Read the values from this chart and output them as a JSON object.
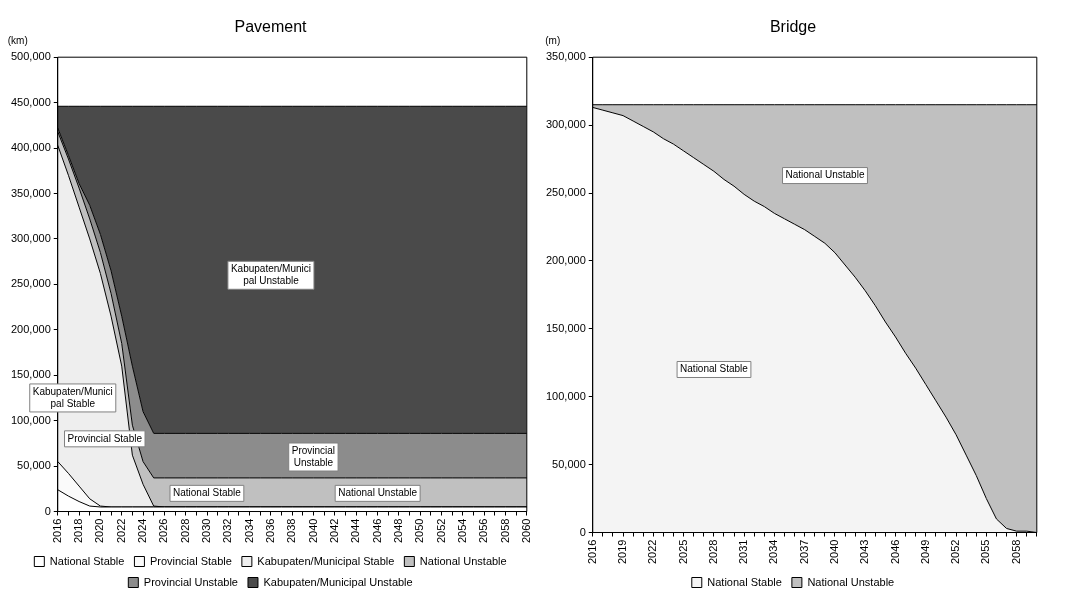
{
  "chart_data": [
    {
      "type": "area",
      "title": "Pavement",
      "ylabel": "(km)",
      "stacked": true,
      "legend": "bottom",
      "categories": [
        "2016",
        null,
        "2018",
        null,
        "2020",
        null,
        "2022",
        null,
        "2024",
        null,
        "2026",
        null,
        "2028",
        null,
        "2030",
        null,
        "2032",
        null,
        "2034",
        null,
        "2036",
        null,
        "2038",
        null,
        "2040",
        null,
        "2042",
        null,
        "2044",
        null,
        "2046",
        null,
        "2048",
        null,
        "2050",
        null,
        "2052",
        null,
        "2054",
        null,
        "2056",
        null,
        "2058",
        null,
        "2060"
      ],
      "ylim": [
        0,
        500000
      ],
      "yticks": [
        {
          "value": 0,
          "label": "0"
        },
        {
          "value": 50000,
          "label": "50,000"
        },
        {
          "value": 100000,
          "label": "100,000"
        },
        {
          "value": 150000,
          "label": "150,000"
        },
        {
          "value": 200000,
          "label": "200,000"
        },
        {
          "value": 250000,
          "label": "250,000"
        },
        {
          "value": 300000,
          "label": "300,000"
        },
        {
          "value": 350000,
          "label": "350,000"
        },
        {
          "value": 400000,
          "label": "400,000"
        },
        {
          "value": 450000,
          "label": "450,000"
        },
        {
          "value": 500000,
          "label": "500,000"
        }
      ],
      "series": [
        {
          "name": "National Stable",
          "color": "#ffffff",
          "values": [
            24000,
            17000,
            11000,
            6000,
            5000,
            5000,
            5000,
            5000,
            5000,
            5000,
            5000,
            5000,
            5000,
            5000,
            5000,
            5000,
            5000,
            5000,
            5000,
            5000,
            5000,
            5000,
            5000,
            5000,
            5000,
            5000,
            5000,
            5000,
            5000,
            5000,
            5000,
            5000,
            5000,
            5000,
            5000,
            5000,
            5000,
            5000,
            5000,
            5000,
            5000,
            5000,
            5000,
            5000,
            5000
          ]
        },
        {
          "name": "Provincial Stable",
          "color": "#fafafa",
          "values": [
            31000,
            25000,
            17000,
            8000,
            1000,
            0,
            0,
            0,
            0,
            0,
            0,
            0,
            0,
            0,
            0,
            0,
            0,
            0,
            0,
            0,
            0,
            0,
            0,
            0,
            0,
            0,
            0,
            0,
            0,
            0,
            0,
            0,
            0,
            0,
            0,
            0,
            0,
            0,
            0,
            0,
            0,
            0,
            0,
            0,
            0
          ]
        },
        {
          "name": "Kabupaten/Municipal Stable",
          "color": "#eeeeee",
          "values": [
            348000,
            328000,
            307000,
            286000,
            256000,
            210000,
            155000,
            57000,
            25000,
            1000,
            0,
            0,
            0,
            0,
            0,
            0,
            0,
            0,
            0,
            0,
            0,
            0,
            0,
            0,
            0,
            0,
            0,
            0,
            0,
            0,
            0,
            0,
            0,
            0,
            0,
            0,
            0,
            0,
            0,
            0,
            0,
            0,
            0,
            0,
            0
          ]
        },
        {
          "name": "National Unstable",
          "color": "#c0c0c0",
          "values": [
            15000,
            18000,
            21000,
            22000,
            23000,
            25000,
            25000,
            33000,
            25000,
            31000,
            32000,
            32000,
            32000,
            32000,
            32000,
            32000,
            32000,
            32000,
            32000,
            32000,
            32000,
            32000,
            32000,
            32000,
            32000,
            32000,
            32000,
            32000,
            32000,
            32000,
            32000,
            32000,
            32000,
            32000,
            32000,
            32000,
            32000,
            32000,
            32000,
            32000,
            32000,
            32000,
            32000,
            32000,
            32000
          ]
        },
        {
          "name": "Provincial Unstable",
          "color": "#8c8c8c",
          "values": [
            4000,
            4000,
            5000,
            15000,
            20000,
            25000,
            30000,
            65000,
            55000,
            49000,
            49000,
            49000,
            49000,
            49000,
            49000,
            49000,
            49000,
            49000,
            49000,
            49000,
            49000,
            49000,
            49000,
            49000,
            49000,
            49000,
            49000,
            49000,
            49000,
            49000,
            49000,
            49000,
            49000,
            49000,
            49000,
            49000,
            49000,
            49000,
            49000,
            49000,
            49000,
            49000,
            49000,
            49000,
            49000
          ]
        },
        {
          "name": "Kabupaten/Municipal Unstable",
          "color": "#4a4a4a",
          "values": [
            24000,
            54000,
            85000,
            109000,
            141000,
            181000,
            231000,
            286000,
            336000,
            360000,
            360000,
            360000,
            360000,
            360000,
            360000,
            360000,
            360000,
            360000,
            360000,
            360000,
            360000,
            360000,
            360000,
            360000,
            360000,
            360000,
            360000,
            360000,
            360000,
            360000,
            360000,
            360000,
            360000,
            360000,
            360000,
            360000,
            360000,
            360000,
            360000,
            360000,
            360000,
            360000,
            360000,
            360000,
            360000
          ]
        }
      ],
      "annotations": [
        "Kabupaten/Munici\npal Unstable",
        "Kabupaten/Munici\npal Stable",
        "Provincial\nUnstable",
        "National Unstable",
        "Provincial Stable",
        "National Stable"
      ]
    },
    {
      "type": "area",
      "title": "Bridge",
      "ylabel": "(m)",
      "stacked": true,
      "legend": "bottom",
      "categories": [
        "2016",
        null,
        null,
        "2019",
        null,
        null,
        "2022",
        null,
        null,
        "2025",
        null,
        null,
        "2028",
        null,
        null,
        "2031",
        null,
        null,
        "2034",
        null,
        null,
        "2037",
        null,
        null,
        "2040",
        null,
        null,
        "2043",
        null,
        null,
        "2046",
        null,
        null,
        "2049",
        null,
        null,
        "2052",
        null,
        null,
        "2055",
        null,
        null,
        "2058",
        null,
        null
      ],
      "ylim": [
        0,
        350000
      ],
      "yticks": [
        {
          "value": 0,
          "label": "0"
        },
        {
          "value": 50000,
          "label": "50,000"
        },
        {
          "value": 100000,
          "label": "100,000"
        },
        {
          "value": 150000,
          "label": "150,000"
        },
        {
          "value": 200000,
          "label": "200,000"
        },
        {
          "value": 250000,
          "label": "250,000"
        },
        {
          "value": 300000,
          "label": "300,000"
        },
        {
          "value": 350000,
          "label": "350,000"
        }
      ],
      "series": [
        {
          "name": "National Stable",
          "color": "#f4f4f4",
          "values": [
            313000,
            311000,
            309000,
            307000,
            303000,
            299000,
            295000,
            290000,
            286000,
            281000,
            276000,
            271000,
            266000,
            260000,
            255000,
            249000,
            244000,
            240000,
            235000,
            231000,
            227000,
            223000,
            218000,
            213000,
            206000,
            197000,
            188000,
            178000,
            167000,
            155000,
            144000,
            132000,
            121000,
            109000,
            97000,
            85000,
            72000,
            57000,
            42000,
            25000,
            10000,
            3000,
            1000,
            1000,
            0
          ]
        },
        {
          "name": "National Unstable",
          "color": "#c0c0c0",
          "values": [
            2000,
            4000,
            6000,
            8000,
            12000,
            16000,
            20000,
            25000,
            29000,
            34000,
            39000,
            44000,
            49000,
            55000,
            60000,
            66000,
            71000,
            75000,
            80000,
            84000,
            88000,
            92000,
            97000,
            102000,
            109000,
            118000,
            127000,
            137000,
            148000,
            160000,
            171000,
            183000,
            194000,
            206000,
            218000,
            230000,
            243000,
            258000,
            273000,
            290000,
            305000,
            312000,
            314000,
            314000,
            315000
          ]
        }
      ],
      "annotations": [
        "National Unstable",
        "National Stable"
      ]
    }
  ]
}
